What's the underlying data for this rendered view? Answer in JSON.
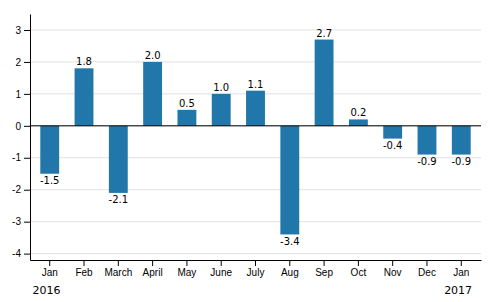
{
  "chart_data": {
    "type": "bar",
    "categories": [
      "Jan",
      "Feb",
      "March",
      "April",
      "May",
      "June",
      "July",
      "Aug",
      "Sep",
      "Oct",
      "Nov",
      "Dec",
      "Jan"
    ],
    "values": [
      -1.5,
      1.8,
      -2.1,
      2.0,
      0.5,
      1.0,
      1.1,
      -3.4,
      2.7,
      0.2,
      -0.4,
      -0.9,
      -0.9
    ],
    "value_labels": [
      "-1.5",
      "1.8",
      "-2.1",
      "2.0",
      "0.5",
      "1.0",
      "1.1",
      "-3.4",
      "2.7",
      "0.2",
      "-0.4",
      "-0.9",
      "-0.9"
    ],
    "color": "#2277aa",
    "ylim": [
      -4.2,
      3.5
    ],
    "yticks": [
      -4,
      -3,
      -2,
      -1,
      0,
      1,
      2,
      3
    ],
    "grid": true,
    "data_labels": true,
    "annotations": [
      {
        "text": "2016",
        "x": 0
      },
      {
        "text": "2017",
        "x": 12
      }
    ]
  }
}
